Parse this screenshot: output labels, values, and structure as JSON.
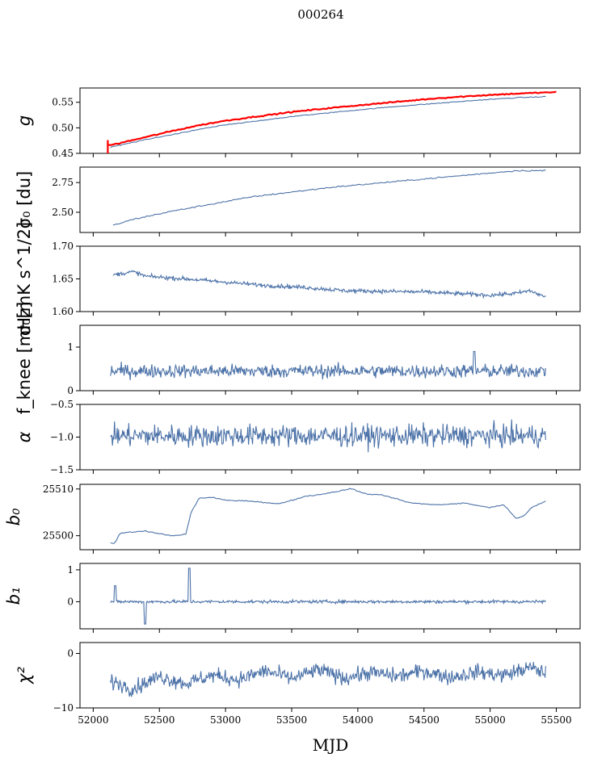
{
  "figure": {
    "title": "000264",
    "xlabel": "MJD",
    "xlim": [
      51900,
      55680
    ],
    "xticks": [
      52000,
      52500,
      53000,
      53500,
      54000,
      54500,
      55000,
      55500
    ],
    "xtick_labels": [
      "52000",
      "52500",
      "53000",
      "53500",
      "54000",
      "54500",
      "55000",
      "55500"
    ],
    "line_color": "#4c72a8",
    "highlight_color": "#ff0000"
  },
  "chart_data": [
    {
      "type": "line",
      "ylabel": "g",
      "ylim": [
        0.45,
        0.578
      ],
      "yticks": [
        0.45,
        0.5,
        0.55
      ],
      "ytick_labels": [
        "0.45",
        "0.50",
        "0.55"
      ],
      "series": [
        {
          "x": [
            52130,
            52200,
            52400,
            52600,
            52800,
            53000,
            53200,
            53500,
            53800,
            54000,
            54300,
            54600,
            54900,
            55200,
            55420
          ],
          "values": [
            0.462,
            0.466,
            0.477,
            0.487,
            0.497,
            0.506,
            0.512,
            0.522,
            0.53,
            0.535,
            0.542,
            0.548,
            0.554,
            0.559,
            0.561
          ]
        },
        {
          "x": [
            52110,
            52130,
            52200,
            52400,
            52600,
            52800,
            53000,
            53200,
            53500,
            53800,
            54000,
            54300,
            54600,
            54900,
            55200,
            55500
          ],
          "values": [
            0.468,
            0.466,
            0.47,
            0.482,
            0.494,
            0.505,
            0.514,
            0.521,
            0.531,
            0.539,
            0.544,
            0.551,
            0.558,
            0.563,
            0.567,
            0.57
          ]
        }
      ]
    },
    {
      "type": "line",
      "ylabel": "σ₀ [du]",
      "ylim": [
        2.33,
        2.88
      ],
      "yticks": [
        2.5,
        2.75
      ],
      "ytick_labels": [
        "2.50",
        "2.75"
      ],
      "series": [
        {
          "x": [
            52150,
            52300,
            52600,
            52900,
            53200,
            53500,
            53800,
            54100,
            54400,
            54700,
            55000,
            55200,
            55420
          ],
          "values": [
            2.39,
            2.44,
            2.51,
            2.57,
            2.63,
            2.67,
            2.71,
            2.74,
            2.77,
            2.8,
            2.83,
            2.85,
            2.85
          ]
        }
      ]
    },
    {
      "type": "line",
      "ylabel": "σ₀[mK s^1/2]",
      "ylim": [
        1.6,
        1.7
      ],
      "yticks": [
        1.6,
        1.65,
        1.7
      ],
      "ytick_labels": [
        "1.60",
        "1.65",
        "1.70"
      ],
      "series": [
        {
          "x": [
            52150,
            52300,
            52400,
            52700,
            53000,
            53300,
            53600,
            53900,
            54200,
            54500,
            54800,
            55000,
            55200,
            55300,
            55420
          ],
          "values": [
            1.656,
            1.661,
            1.654,
            1.65,
            1.645,
            1.64,
            1.637,
            1.632,
            1.631,
            1.63,
            1.627,
            1.625,
            1.628,
            1.632,
            1.622
          ]
        }
      ]
    },
    {
      "type": "line",
      "ylabel": "f_knee [mHz]",
      "ylim": [
        0,
        1.5
      ],
      "yticks": [
        0,
        1
      ],
      "ytick_labels": [
        "0",
        "1"
      ],
      "series": [
        {
          "x": [
            52130,
            55420
          ],
          "values": [
            0.45,
            0.45
          ]
        }
      ]
    },
    {
      "type": "line",
      "ylabel": "α",
      "ylim": [
        -1.5,
        -0.5
      ],
      "yticks": [
        -1.5,
        -1.0,
        -0.5
      ],
      "ytick_labels": [
        "−1.5",
        "−1.0",
        "−0.5"
      ],
      "series": [
        {
          "x": [
            52130,
            55420
          ],
          "values": [
            -0.98,
            -0.98
          ]
        }
      ]
    },
    {
      "type": "line",
      "ylabel": "b₀",
      "ylim": [
        25497.0,
        25511.0
      ],
      "yticks": [
        25500,
        25510
      ],
      "ytick_labels": [
        "25500",
        "25510"
      ],
      "series": [
        {
          "x": [
            52130,
            52160,
            52200,
            52300,
            52400,
            52500,
            52600,
            52700,
            52740,
            52800,
            52900,
            53000,
            53200,
            53400,
            53600,
            53800,
            53950,
            54050,
            54200,
            54400,
            54600,
            54800,
            55000,
            55050,
            55100,
            55150,
            55200,
            55250,
            55320,
            55420
          ],
          "values": [
            25498.5,
            25498.2,
            25500.5,
            25500.8,
            25501.0,
            25500.4,
            25500.0,
            25500.3,
            25505.0,
            25508.0,
            25508.2,
            25507.6,
            25507.4,
            25506.8,
            25508.4,
            25509.2,
            25510.1,
            25509.0,
            25508.6,
            25507.0,
            25506.6,
            25507.0,
            25506.0,
            25506.4,
            25506.6,
            25505.2,
            25503.6,
            25504.2,
            25506.2,
            25507.4
          ]
        }
      ]
    },
    {
      "type": "line",
      "ylabel": "b₁",
      "ylim": [
        -0.85,
        1.2
      ],
      "yticks": [
        0,
        1
      ],
      "ytick_labels": [
        "0",
        "1"
      ],
      "series": [
        {
          "x": [
            52130,
            55420
          ],
          "values": [
            0.0,
            0.0
          ]
        }
      ]
    },
    {
      "type": "line",
      "ylabel": "χ²",
      "ylim": [
        -10,
        2
      ],
      "yticks": [
        -10,
        0
      ],
      "ytick_labels": [
        "−10",
        "0"
      ],
      "series": [
        {
          "x": [
            52130,
            52300,
            52500,
            52700,
            52900,
            53100,
            53300,
            53500,
            53700,
            53900,
            54100,
            54300,
            54500,
            54700,
            54900,
            55100,
            55300,
            55420
          ],
          "values": [
            -5.0,
            -6.5,
            -4.2,
            -5.5,
            -4.0,
            -4.8,
            -3.2,
            -4.6,
            -3.0,
            -4.5,
            -3.5,
            -4.2,
            -3.2,
            -4.4,
            -3.4,
            -4.0,
            -2.6,
            -3.6
          ]
        }
      ]
    }
  ]
}
